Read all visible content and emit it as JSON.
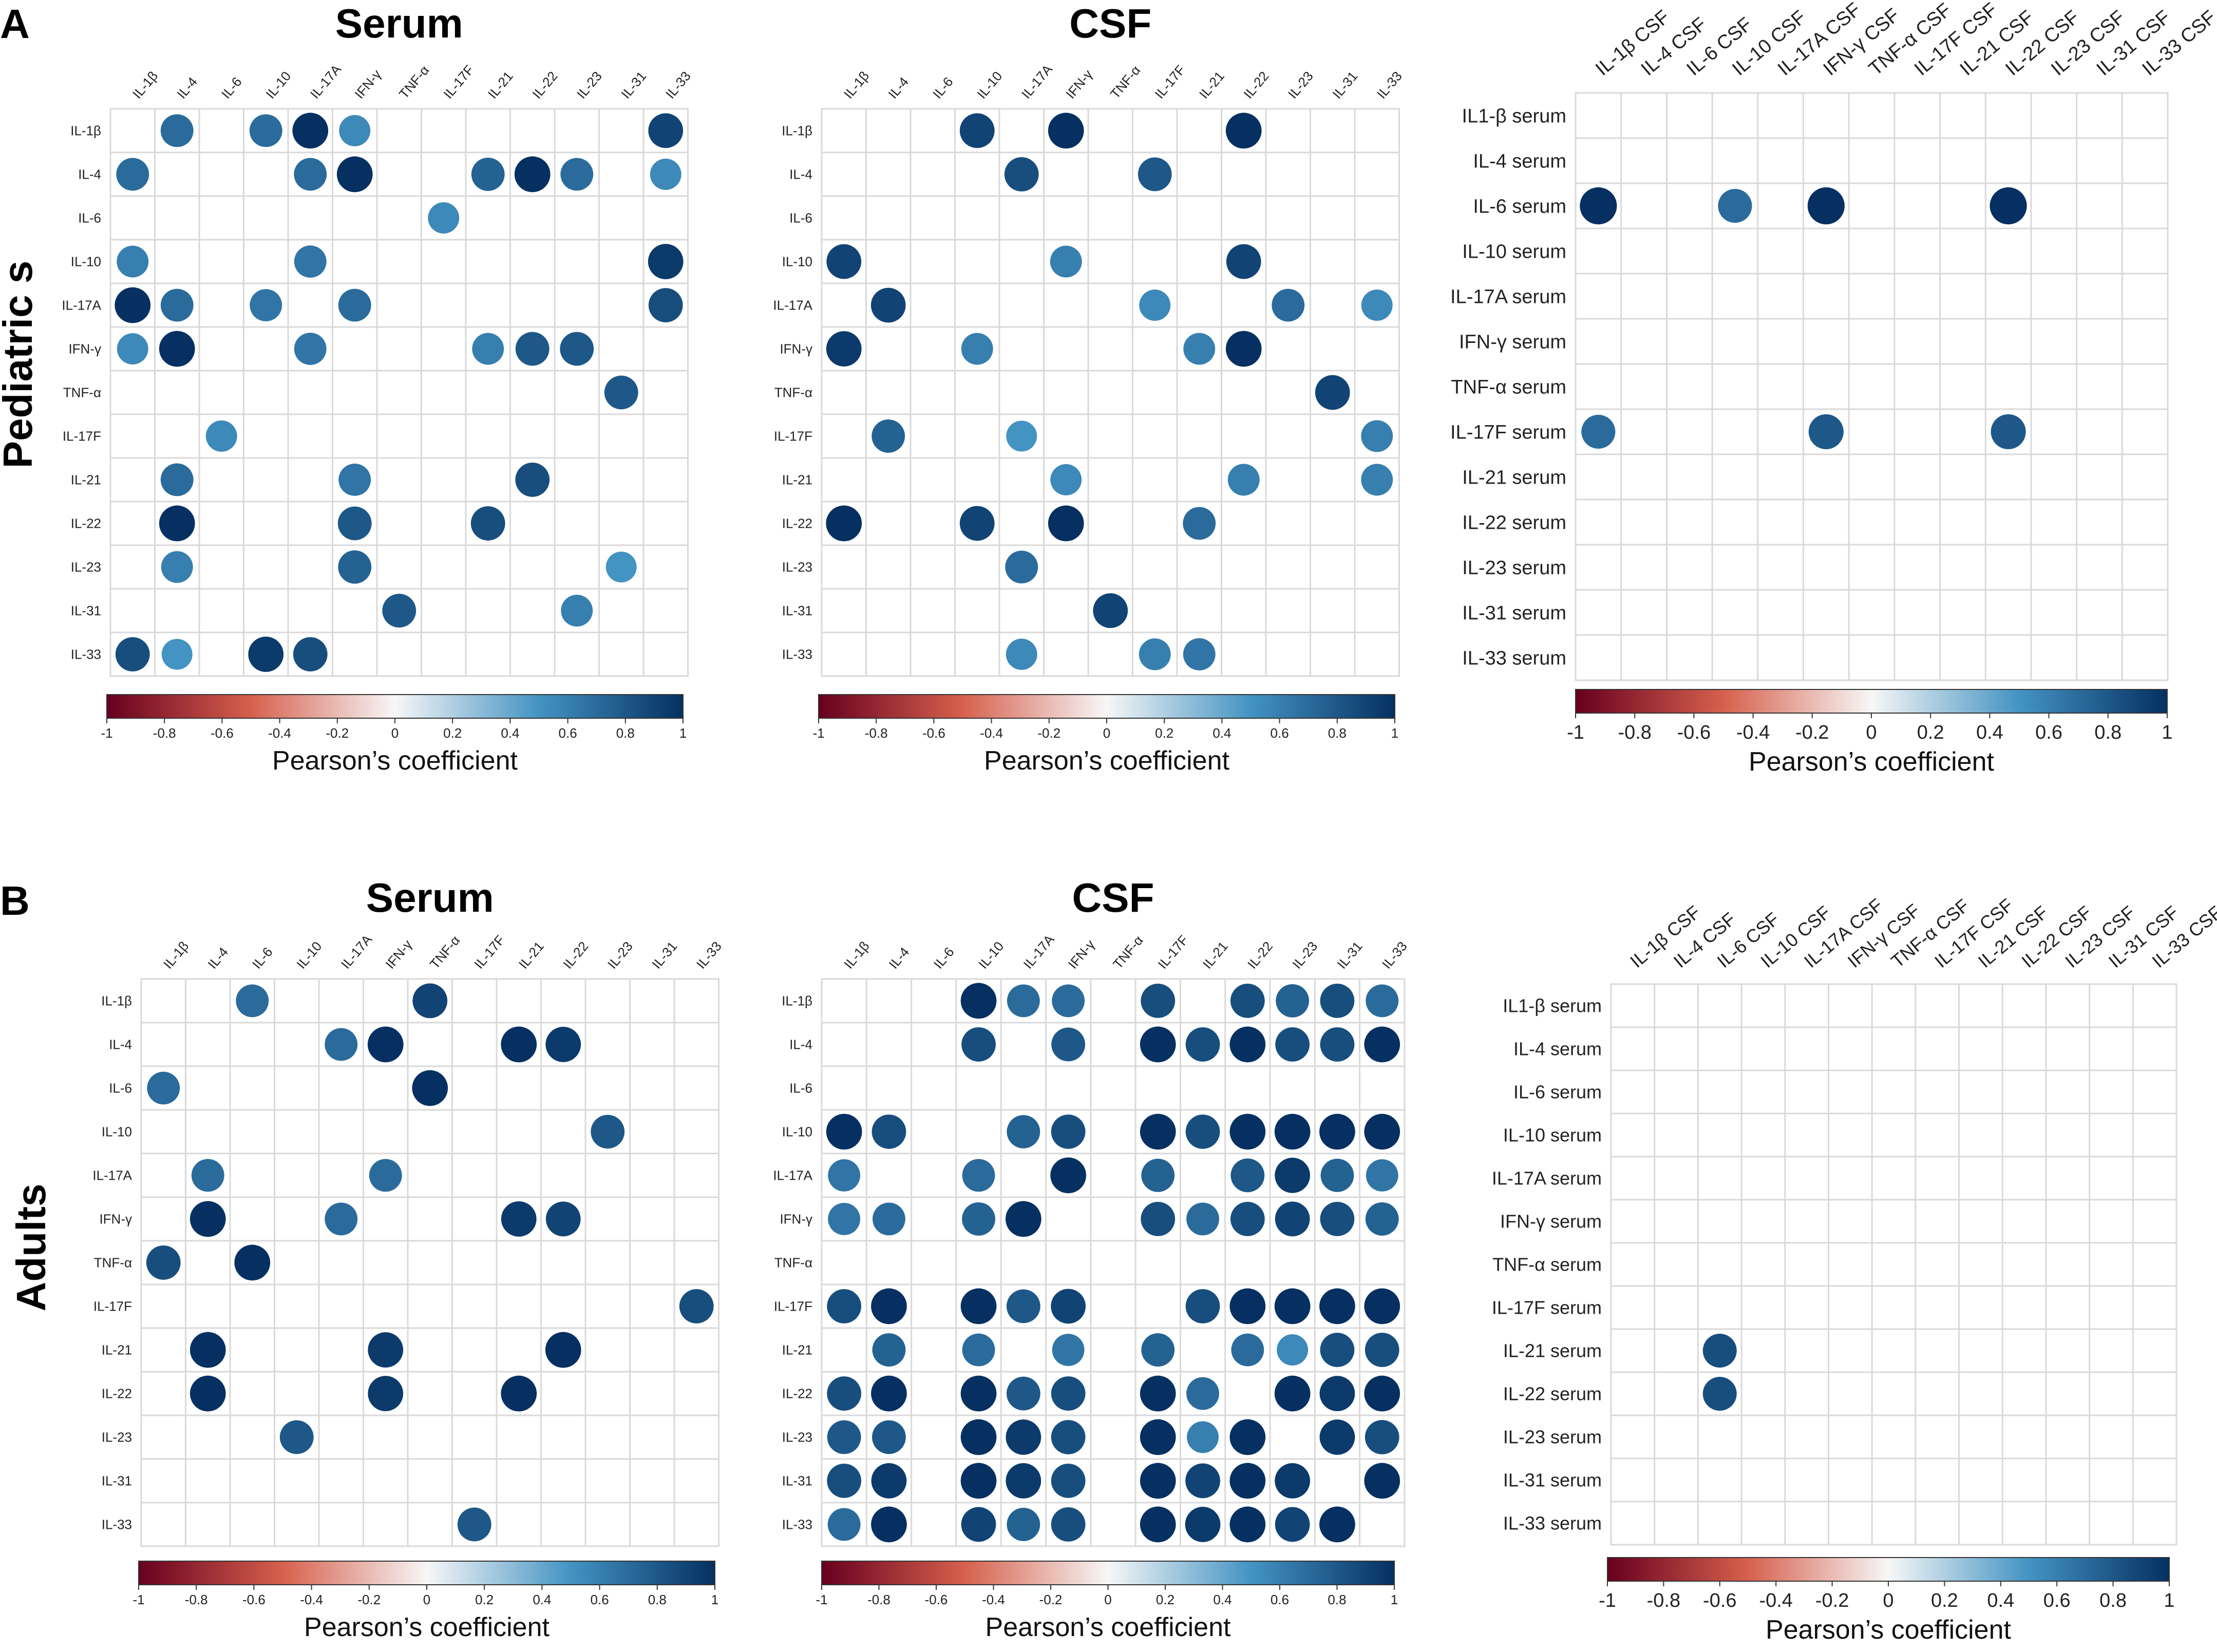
{
  "figure": {
    "panel_a_letter": "A",
    "panel_b_letter": "B",
    "row_a_label": "Pediatric s",
    "row_b_label": "Adults",
    "serum_title": "Serum",
    "csf_title": "CSF"
  },
  "colors": {
    "neg_end": "#67001f",
    "neg_mid": "#d6604d",
    "zero": "#f7f7f7",
    "pos_mid": "#4393c3",
    "pos_end": "#053061",
    "grid": "#d9d9d9"
  },
  "chart_data": [
    {
      "id": "A-serum",
      "type": "heatmap",
      "title": "Serum",
      "panel": "A",
      "x_labels": [
        "IL-1β",
        "IL-4",
        "IL-6",
        "IL-10",
        "IL-17A",
        "IFN-γ",
        "TNF-α",
        "IL-17F",
        "IL-21",
        "IL-22",
        "IL-23",
        "IL-31",
        "IL-33"
      ],
      "y_labels": [
        "IL-1β",
        "IL-4",
        "IL-6",
        "IL-10",
        "IL-17A",
        "IFN-γ",
        "TNF-α",
        "IL-17F",
        "IL-21",
        "IL-22",
        "IL-23",
        "IL-31",
        "IL-33"
      ],
      "cells": [
        [
          0,
          1,
          0.7
        ],
        [
          0,
          3,
          0.7
        ],
        [
          0,
          4,
          1.0
        ],
        [
          0,
          5,
          0.55
        ],
        [
          0,
          12,
          0.9
        ],
        [
          1,
          0,
          0.7
        ],
        [
          1,
          4,
          0.7
        ],
        [
          1,
          5,
          1.0
        ],
        [
          1,
          8,
          0.75
        ],
        [
          1,
          9,
          1.0
        ],
        [
          1,
          10,
          0.7
        ],
        [
          1,
          12,
          0.55
        ],
        [
          2,
          7,
          0.55
        ],
        [
          3,
          0,
          0.6
        ],
        [
          3,
          4,
          0.65
        ],
        [
          3,
          12,
          0.95
        ],
        [
          4,
          0,
          1.0
        ],
        [
          4,
          1,
          0.7
        ],
        [
          4,
          3,
          0.65
        ],
        [
          4,
          5,
          0.7
        ],
        [
          4,
          12,
          0.85
        ],
        [
          5,
          0,
          0.55
        ],
        [
          5,
          1,
          1.0
        ],
        [
          5,
          4,
          0.65
        ],
        [
          5,
          8,
          0.6
        ],
        [
          5,
          9,
          0.8
        ],
        [
          5,
          10,
          0.8
        ],
        [
          6,
          11,
          0.8
        ],
        [
          7,
          2,
          0.55
        ],
        [
          8,
          1,
          0.7
        ],
        [
          8,
          5,
          0.65
        ],
        [
          8,
          9,
          0.85
        ],
        [
          9,
          1,
          1.0
        ],
        [
          9,
          5,
          0.8
        ],
        [
          9,
          8,
          0.85
        ],
        [
          10,
          1,
          0.6
        ],
        [
          10,
          5,
          0.75
        ],
        [
          10,
          11,
          0.5
        ],
        [
          11,
          6,
          0.8
        ],
        [
          11,
          10,
          0.6
        ],
        [
          12,
          0,
          0.85
        ],
        [
          12,
          1,
          0.5
        ],
        [
          12,
          3,
          0.95
        ],
        [
          12,
          4,
          0.85
        ]
      ],
      "colorbar": {
        "ticks": [
          "-1",
          "-0.8",
          "-0.6",
          "-0.4",
          "-0.2",
          "0",
          "0.2",
          "0.4",
          "0.6",
          "0.8",
          "1"
        ],
        "label": "Pearson’s coefficient"
      },
      "range": [
        -1,
        1
      ]
    },
    {
      "id": "A-csf",
      "type": "heatmap",
      "title": "CSF",
      "panel": "A",
      "x_labels": [
        "IL-1β",
        "IL-4",
        "IL-6",
        "IL-10",
        "IL-17A",
        "IFN-γ",
        "TNF-α",
        "IL-17F",
        "IL-21",
        "IL-22",
        "IL-23",
        "IL-31",
        "IL-33"
      ],
      "y_labels": [
        "IL-1β",
        "IL-4",
        "IL-6",
        "IL-10",
        "IL-17A",
        "IFN-γ",
        "TNF-α",
        "IL-17F",
        "IL-21",
        "IL-22",
        "IL-23",
        "IL-31",
        "IL-33"
      ],
      "cells": [
        [
          0,
          3,
          0.9
        ],
        [
          0,
          5,
          1.0
        ],
        [
          0,
          9,
          1.0
        ],
        [
          1,
          4,
          0.85
        ],
        [
          1,
          7,
          0.8
        ],
        [
          3,
          0,
          0.9
        ],
        [
          3,
          5,
          0.6
        ],
        [
          3,
          9,
          0.9
        ],
        [
          4,
          1,
          0.9
        ],
        [
          4,
          7,
          0.55
        ],
        [
          4,
          10,
          0.7
        ],
        [
          4,
          12,
          0.55
        ],
        [
          5,
          0,
          0.95
        ],
        [
          5,
          3,
          0.6
        ],
        [
          5,
          8,
          0.6
        ],
        [
          5,
          9,
          1.0
        ],
        [
          6,
          11,
          0.9
        ],
        [
          7,
          1,
          0.75
        ],
        [
          7,
          4,
          0.5
        ],
        [
          7,
          12,
          0.6
        ],
        [
          8,
          5,
          0.55
        ],
        [
          8,
          9,
          0.6
        ],
        [
          8,
          12,
          0.6
        ],
        [
          9,
          0,
          1.0
        ],
        [
          9,
          3,
          0.9
        ],
        [
          9,
          5,
          1.0
        ],
        [
          9,
          8,
          0.7
        ],
        [
          10,
          4,
          0.7
        ],
        [
          11,
          6,
          0.9
        ],
        [
          12,
          4,
          0.55
        ],
        [
          12,
          7,
          0.6
        ],
        [
          12,
          8,
          0.65
        ]
      ],
      "colorbar": {
        "ticks": [
          "-1",
          "-0.8",
          "-0.6",
          "-0.4",
          "-0.2",
          "0",
          "0.2",
          "0.4",
          "0.6",
          "0.8",
          "1"
        ],
        "label": "Pearson’s coefficient"
      },
      "range": [
        -1,
        1
      ]
    },
    {
      "id": "A-cross",
      "type": "heatmap",
      "title": "",
      "panel": "A",
      "x_labels": [
        "IL-1β CSF",
        "IL-4 CSF",
        "IL-6 CSF",
        "IL-10 CSF",
        "IL-17A CSF",
        "IFN-γ CSF",
        "TNF-α CSF",
        "IL-17F CSF",
        "IL-21 CSF",
        "IL-22 CSF",
        "IL-23 CSF",
        "IL-31 CSF",
        "IL-33 CSF"
      ],
      "y_labels": [
        "IL1-β serum",
        "IL-4 serum",
        "IL-6 serum",
        "IL-10 serum",
        "IL-17A serum",
        "IFN-γ serum",
        "TNF-α serum",
        "IL-17F serum",
        "IL-21 serum",
        "IL-22 serum",
        "IL-23 serum",
        "IL-31 serum",
        "IL-33 serum"
      ],
      "cells": [
        [
          2,
          0,
          1.0
        ],
        [
          2,
          3,
          0.7
        ],
        [
          2,
          5,
          1.0
        ],
        [
          2,
          9,
          1.0
        ],
        [
          7,
          0,
          0.7
        ],
        [
          7,
          5,
          0.8
        ],
        [
          7,
          9,
          0.8
        ]
      ],
      "colorbar": {
        "ticks": [
          "-1",
          "-0.8",
          "-0.6",
          "-0.4",
          "-0.2",
          "0",
          "0.2",
          "0.4",
          "0.6",
          "0.8",
          "1"
        ],
        "label": "Pearson’s coefficient"
      },
      "range": [
        -1,
        1
      ]
    },
    {
      "id": "B-serum",
      "type": "heatmap",
      "title": "Serum",
      "panel": "B",
      "x_labels": [
        "IL-1β",
        "IL-4",
        "IL-6",
        "IL-10",
        "IL-17A",
        "IFN-γ",
        "TNF-α",
        "IL-17F",
        "IL-21",
        "IL-22",
        "IL-23",
        "IL-31",
        "IL-33"
      ],
      "y_labels": [
        "IL-1β",
        "IL-4",
        "IL-6",
        "IL-10",
        "IL-17A",
        "IFN-γ",
        "TNF-α",
        "IL-17F",
        "IL-21",
        "IL-22",
        "IL-23",
        "IL-31",
        "IL-33"
      ],
      "cells": [
        [
          0,
          2,
          0.7
        ],
        [
          0,
          6,
          0.9
        ],
        [
          1,
          4,
          0.7
        ],
        [
          1,
          5,
          1.0
        ],
        [
          1,
          8,
          1.0
        ],
        [
          1,
          9,
          0.95
        ],
        [
          2,
          0,
          0.7
        ],
        [
          2,
          6,
          1.0
        ],
        [
          3,
          10,
          0.8
        ],
        [
          4,
          1,
          0.7
        ],
        [
          4,
          5,
          0.7
        ],
        [
          5,
          1,
          1.0
        ],
        [
          5,
          4,
          0.7
        ],
        [
          5,
          8,
          0.95
        ],
        [
          5,
          9,
          0.9
        ],
        [
          6,
          0,
          0.85
        ],
        [
          6,
          2,
          1.0
        ],
        [
          7,
          12,
          0.85
        ],
        [
          8,
          1,
          1.0
        ],
        [
          8,
          5,
          0.95
        ],
        [
          8,
          9,
          1.0
        ],
        [
          9,
          1,
          1.0
        ],
        [
          9,
          5,
          0.95
        ],
        [
          9,
          8,
          1.0
        ],
        [
          10,
          3,
          0.8
        ],
        [
          12,
          7,
          0.8
        ]
      ],
      "colorbar": {
        "ticks": [
          "-1",
          "-0.8",
          "-0.6",
          "-0.4",
          "-0.2",
          "0",
          "0.2",
          "0.4",
          "0.6",
          "0.8",
          "1"
        ],
        "label": "Pearson’s coefficient"
      },
      "range": [
        -1,
        1
      ]
    },
    {
      "id": "B-csf",
      "type": "heatmap",
      "title": "CSF",
      "panel": "B",
      "x_labels": [
        "IL-1β",
        "IL-4",
        "IL-6",
        "IL-10",
        "IL-17A",
        "IFN-γ",
        "TNF-α",
        "IL-17F",
        "IL-21",
        "IL-22",
        "IL-23",
        "IL-31",
        "IL-33"
      ],
      "y_labels": [
        "IL-1β",
        "IL-4",
        "IL-6",
        "IL-10",
        "IL-17A",
        "IFN-γ",
        "TNF-α",
        "IL-17F",
        "IL-21",
        "IL-22",
        "IL-23",
        "IL-31",
        "IL-33"
      ],
      "cells": [
        [
          0,
          3,
          1.0
        ],
        [
          0,
          4,
          0.7
        ],
        [
          0,
          5,
          0.7
        ],
        [
          0,
          7,
          0.85
        ],
        [
          0,
          9,
          0.85
        ],
        [
          0,
          10,
          0.75
        ],
        [
          0,
          11,
          0.85
        ],
        [
          0,
          12,
          0.7
        ],
        [
          1,
          3,
          0.85
        ],
        [
          1,
          5,
          0.8
        ],
        [
          1,
          7,
          1.0
        ],
        [
          1,
          8,
          0.85
        ],
        [
          1,
          9,
          1.0
        ],
        [
          1,
          10,
          0.85
        ],
        [
          1,
          11,
          0.85
        ],
        [
          1,
          12,
          1.0
        ],
        [
          3,
          0,
          1.0
        ],
        [
          3,
          1,
          0.85
        ],
        [
          3,
          4,
          0.75
        ],
        [
          3,
          5,
          0.85
        ],
        [
          3,
          7,
          1.0
        ],
        [
          3,
          8,
          0.85
        ],
        [
          3,
          9,
          1.0
        ],
        [
          3,
          10,
          1.0
        ],
        [
          3,
          11,
          1.0
        ],
        [
          3,
          12,
          1.0
        ],
        [
          4,
          0,
          0.65
        ],
        [
          4,
          3,
          0.7
        ],
        [
          4,
          5,
          1.0
        ],
        [
          4,
          7,
          0.75
        ],
        [
          4,
          9,
          0.8
        ],
        [
          4,
          10,
          0.95
        ],
        [
          4,
          11,
          0.75
        ],
        [
          4,
          12,
          0.65
        ],
        [
          5,
          0,
          0.65
        ],
        [
          5,
          1,
          0.7
        ],
        [
          5,
          3,
          0.75
        ],
        [
          5,
          4,
          1.0
        ],
        [
          5,
          7,
          0.85
        ],
        [
          5,
          8,
          0.7
        ],
        [
          5,
          9,
          0.85
        ],
        [
          5,
          10,
          0.9
        ],
        [
          5,
          11,
          0.85
        ],
        [
          5,
          12,
          0.75
        ],
        [
          7,
          0,
          0.85
        ],
        [
          7,
          1,
          1.0
        ],
        [
          7,
          3,
          1.0
        ],
        [
          7,
          4,
          0.8
        ],
        [
          7,
          5,
          0.9
        ],
        [
          7,
          8,
          0.85
        ],
        [
          7,
          9,
          1.0
        ],
        [
          7,
          10,
          1.0
        ],
        [
          7,
          11,
          1.0
        ],
        [
          7,
          12,
          1.0
        ],
        [
          8,
          1,
          0.75
        ],
        [
          8,
          3,
          0.7
        ],
        [
          8,
          5,
          0.65
        ],
        [
          8,
          7,
          0.75
        ],
        [
          8,
          9,
          0.7
        ],
        [
          8,
          10,
          0.55
        ],
        [
          8,
          11,
          0.85
        ],
        [
          8,
          12,
          0.85
        ],
        [
          9,
          0,
          0.85
        ],
        [
          9,
          1,
          1.0
        ],
        [
          9,
          3,
          1.0
        ],
        [
          9,
          4,
          0.8
        ],
        [
          9,
          5,
          0.85
        ],
        [
          9,
          7,
          1.0
        ],
        [
          9,
          8,
          0.7
        ],
        [
          9,
          10,
          1.0
        ],
        [
          9,
          11,
          0.95
        ],
        [
          9,
          12,
          1.0
        ],
        [
          10,
          0,
          0.8
        ],
        [
          10,
          1,
          0.8
        ],
        [
          10,
          3,
          1.0
        ],
        [
          10,
          4,
          0.95
        ],
        [
          10,
          5,
          0.85
        ],
        [
          10,
          7,
          1.0
        ],
        [
          10,
          8,
          0.6
        ],
        [
          10,
          9,
          1.0
        ],
        [
          10,
          11,
          0.95
        ],
        [
          10,
          12,
          0.85
        ],
        [
          11,
          0,
          0.85
        ],
        [
          11,
          1,
          0.95
        ],
        [
          11,
          3,
          1.0
        ],
        [
          11,
          4,
          0.95
        ],
        [
          11,
          5,
          0.85
        ],
        [
          11,
          7,
          1.0
        ],
        [
          11,
          8,
          0.9
        ],
        [
          11,
          9,
          1.0
        ],
        [
          11,
          10,
          0.95
        ],
        [
          11,
          12,
          1.0
        ],
        [
          12,
          0,
          0.7
        ],
        [
          12,
          1,
          1.0
        ],
        [
          12,
          3,
          0.9
        ],
        [
          12,
          4,
          0.75
        ],
        [
          12,
          5,
          0.85
        ],
        [
          12,
          7,
          1.0
        ],
        [
          12,
          8,
          0.95
        ],
        [
          12,
          9,
          1.0
        ],
        [
          12,
          10,
          0.9
        ],
        [
          12,
          11,
          1.0
        ]
      ],
      "colorbar": {
        "ticks": [
          "-1",
          "-0.8",
          "-0.6",
          "-0.4",
          "-0.2",
          "0",
          "0.2",
          "0.4",
          "0.6",
          "0.8",
          "1"
        ],
        "label": "Pearson’s coefficient"
      },
      "range": [
        -1,
        1
      ]
    },
    {
      "id": "B-cross",
      "type": "heatmap",
      "title": "",
      "panel": "B",
      "x_labels": [
        "IL-1β CSF",
        "IL-4 CSF",
        "IL-6 CSF",
        "IL-10 CSF",
        "IL-17A CSF",
        "IFN-γ CSF",
        "TNF-α CSF",
        "IL-17F CSF",
        "IL-21 CSF",
        "IL-22 CSF",
        "IL-23 CSF",
        "IL-31 CSF",
        "IL-33 CSF"
      ],
      "y_labels": [
        "IL1-β serum",
        "IL-4 serum",
        "IL-6 serum",
        "IL-10 serum",
        "IL-17A serum",
        "IFN-γ serum",
        "TNF-α serum",
        "IL-17F serum",
        "IL-21 serum",
        "IL-22 serum",
        "IL-23 serum",
        "IL-31 serum",
        "IL-33 serum"
      ],
      "cells": [
        [
          8,
          2,
          0.85
        ],
        [
          9,
          2,
          0.85
        ]
      ],
      "colorbar": {
        "ticks": [
          "-1",
          "-0.8",
          "-0.6",
          "-0.4",
          "-0.2",
          "0",
          "0.2",
          "0.4",
          "0.6",
          "0.8",
          "1"
        ],
        "label": "Pearson’s coefficient"
      },
      "range": [
        -1,
        1
      ]
    }
  ]
}
